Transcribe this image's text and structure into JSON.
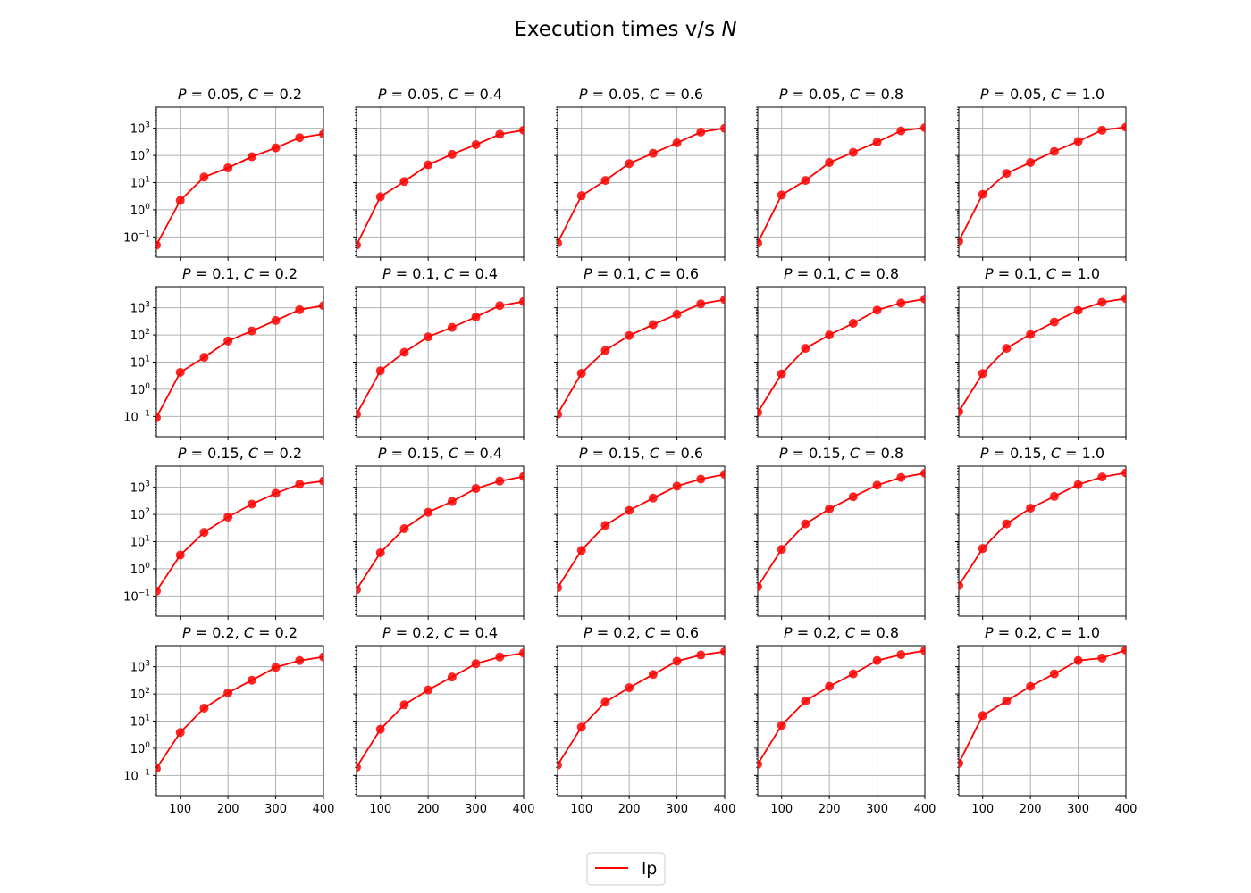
{
  "figure": {
    "title_prefix": "Execution times v/s ",
    "title_var": "N"
  },
  "legend": {
    "label": "lp",
    "color": "#ff0000",
    "placement": "lower-center"
  },
  "chart_data": {
    "type": "line",
    "yscale": "log",
    "xlim": [
      50,
      400
    ],
    "ylim": [
      0.018,
      6000
    ],
    "x": [
      50,
      100,
      150,
      200,
      250,
      300,
      350,
      400
    ],
    "xticks": [
      100,
      200,
      300,
      400
    ],
    "yticks": [
      0.1,
      1,
      10,
      100,
      1000
    ],
    "ytick_labels": [
      {
        "base": "10",
        "exp": "−1"
      },
      {
        "base": "10",
        "exp": "0"
      },
      {
        "base": "10",
        "exp": "1"
      },
      {
        "base": "10",
        "exp": "2"
      },
      {
        "base": "10",
        "exp": "3"
      }
    ],
    "grid": true,
    "color": "#ff0000",
    "panels": [
      {
        "P": "0.05",
        "C": "0.2",
        "y": [
          0.05,
          2.2,
          16,
          35,
          90,
          190,
          450,
          620
        ]
      },
      {
        "P": "0.05",
        "C": "0.4",
        "y": [
          0.05,
          3,
          11,
          45,
          110,
          250,
          600,
          850
        ]
      },
      {
        "P": "0.05",
        "C": "0.6",
        "y": [
          0.06,
          3.3,
          12,
          50,
          120,
          290,
          720,
          1000
        ]
      },
      {
        "P": "0.05",
        "C": "0.8",
        "y": [
          0.06,
          3.5,
          12,
          55,
          130,
          310,
          800,
          1050
        ]
      },
      {
        "P": "0.05",
        "C": "1.0",
        "y": [
          0.07,
          3.7,
          22,
          55,
          140,
          330,
          850,
          1100
        ]
      },
      {
        "P": "0.1",
        "C": "0.2",
        "y": [
          0.09,
          4.2,
          15,
          60,
          140,
          340,
          850,
          1200
        ]
      },
      {
        "P": "0.1",
        "C": "0.4",
        "y": [
          0.12,
          4.8,
          23,
          85,
          190,
          460,
          1200,
          1700
        ]
      },
      {
        "P": "0.1",
        "C": "0.6",
        "y": [
          0.12,
          3.9,
          27,
          95,
          240,
          580,
          1400,
          2000
        ]
      },
      {
        "P": "0.1",
        "C": "0.8",
        "y": [
          0.14,
          3.7,
          32,
          100,
          270,
          820,
          1500,
          2100
        ]
      },
      {
        "P": "0.1",
        "C": "1.0",
        "y": [
          0.15,
          3.8,
          32,
          105,
          300,
          800,
          1600,
          2200
        ]
      },
      {
        "P": "0.15",
        "C": "0.2",
        "y": [
          0.15,
          3.2,
          22,
          80,
          240,
          600,
          1300,
          1700
        ]
      },
      {
        "P": "0.15",
        "C": "0.4",
        "y": [
          0.17,
          3.9,
          30,
          120,
          300,
          900,
          1700,
          2500
        ]
      },
      {
        "P": "0.15",
        "C": "0.6",
        "y": [
          0.2,
          4.8,
          40,
          140,
          400,
          1100,
          2000,
          3000
        ]
      },
      {
        "P": "0.15",
        "C": "0.8",
        "y": [
          0.22,
          5.2,
          45,
          160,
          450,
          1200,
          2300,
          3300
        ]
      },
      {
        "P": "0.15",
        "C": "1.0",
        "y": [
          0.24,
          5.6,
          45,
          170,
          460,
          1250,
          2400,
          3400
        ]
      },
      {
        "P": "0.2",
        "C": "0.2",
        "y": [
          0.18,
          3.8,
          30,
          110,
          320,
          950,
          1700,
          2300
        ]
      },
      {
        "P": "0.2",
        "C": "0.4",
        "y": [
          0.2,
          5,
          40,
          140,
          420,
          1300,
          2300,
          3200
        ]
      },
      {
        "P": "0.2",
        "C": "0.6",
        "y": [
          0.24,
          6,
          50,
          170,
          520,
          1600,
          2700,
          3600
        ]
      },
      {
        "P": "0.2",
        "C": "0.8",
        "y": [
          0.26,
          7,
          55,
          190,
          550,
          1700,
          2800,
          3900
        ]
      },
      {
        "P": "0.2",
        "C": "1.0",
        "y": [
          0.28,
          16,
          55,
          190,
          550,
          1700,
          2100,
          4100
        ]
      }
    ]
  }
}
